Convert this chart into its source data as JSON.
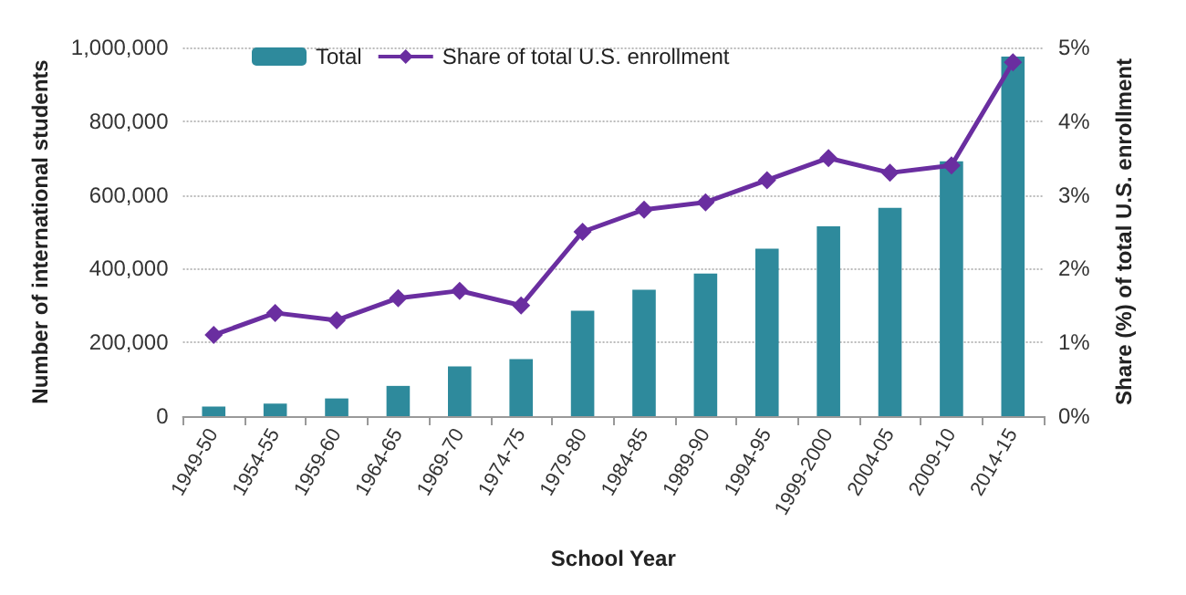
{
  "chart_data": {
    "type": "bar",
    "xlabel": "School Year",
    "ylabel": "Number of international students",
    "y2label": "Share (%) of total U.S. enrollment",
    "categories": [
      "1949-50",
      "1954-55",
      "1959-60",
      "1964-65",
      "1969-70",
      "1974-75",
      "1979-80",
      "1984-85",
      "1989-90",
      "1994-95",
      "1999-2000",
      "2004-05",
      "2009-10",
      "2014-15"
    ],
    "series": [
      {
        "name": "Total",
        "color": "#2e8a9c",
        "values": [
          26000,
          34000,
          48000,
          82000,
          135000,
          155000,
          286000,
          343000,
          387000,
          454000,
          515000,
          565000,
          691000,
          975000
        ]
      },
      {
        "name": "Share of total U.S. enrollment",
        "type": "line",
        "axis": "y2",
        "color": "#6a2ea0",
        "marker": "diamond",
        "values": [
          1.1,
          1.4,
          1.3,
          1.6,
          1.7,
          1.5,
          2.5,
          2.8,
          2.9,
          3.2,
          3.5,
          3.3,
          3.4,
          4.8
        ]
      }
    ],
    "ylim": [
      0,
      1000000
    ],
    "yticks": [
      {
        "value": 0,
        "label": "0"
      },
      {
        "value": 200000,
        "label": "200,000"
      },
      {
        "value": 400000,
        "label": "400,000"
      },
      {
        "value": 600000,
        "label": "600,000"
      },
      {
        "value": 800000,
        "label": "800,000"
      },
      {
        "value": 1000000,
        "label": "1,000,000"
      }
    ],
    "y2lim": [
      0,
      5
    ],
    "y2ticks": [
      {
        "value": 0,
        "label": "0%"
      },
      {
        "value": 1,
        "label": "1%"
      },
      {
        "value": 2,
        "label": "2%"
      },
      {
        "value": 3,
        "label": "3%"
      },
      {
        "value": 4,
        "label": "4%"
      },
      {
        "value": 5,
        "label": "5%"
      }
    ],
    "grid": "y",
    "legend": "top left"
  }
}
